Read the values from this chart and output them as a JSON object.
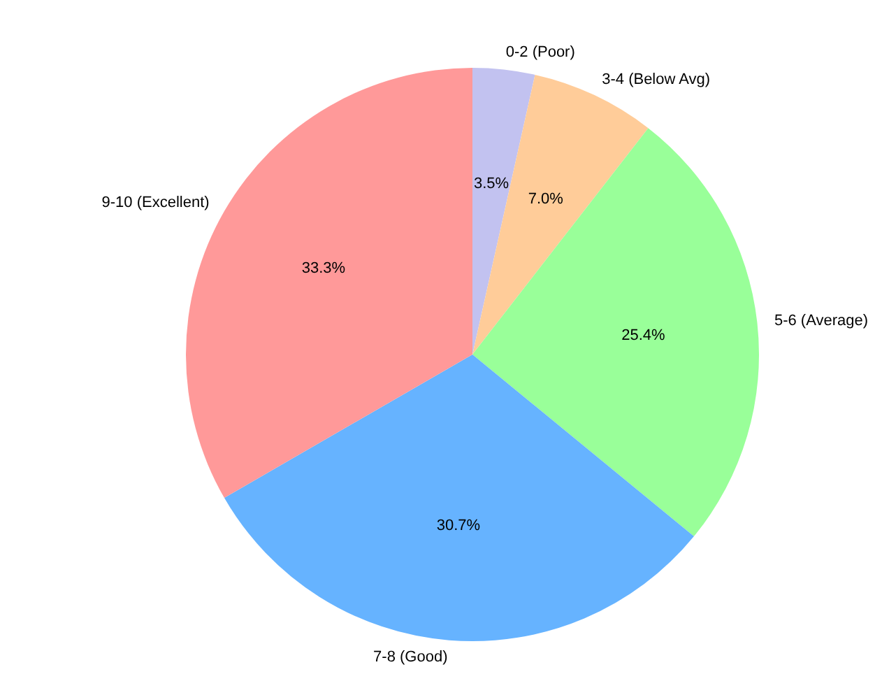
{
  "chart_data": {
    "type": "pie",
    "categories": [
      "0-2 (Poor)",
      "3-4 (Below Avg)",
      "5-6 (Average)",
      "7-8 (Good)",
      "9-10 (Excellent)"
    ],
    "values": [
      3.5,
      7.0,
      25.4,
      30.7,
      33.3
    ],
    "colors": [
      "#c2c2f0",
      "#ffcc99",
      "#99ff99",
      "#66b3ff",
      "#ff9999"
    ],
    "value_labels": [
      "3.5%",
      "7.0%",
      "25.4%",
      "30.7%",
      "33.3%"
    ],
    "legend": false
  }
}
